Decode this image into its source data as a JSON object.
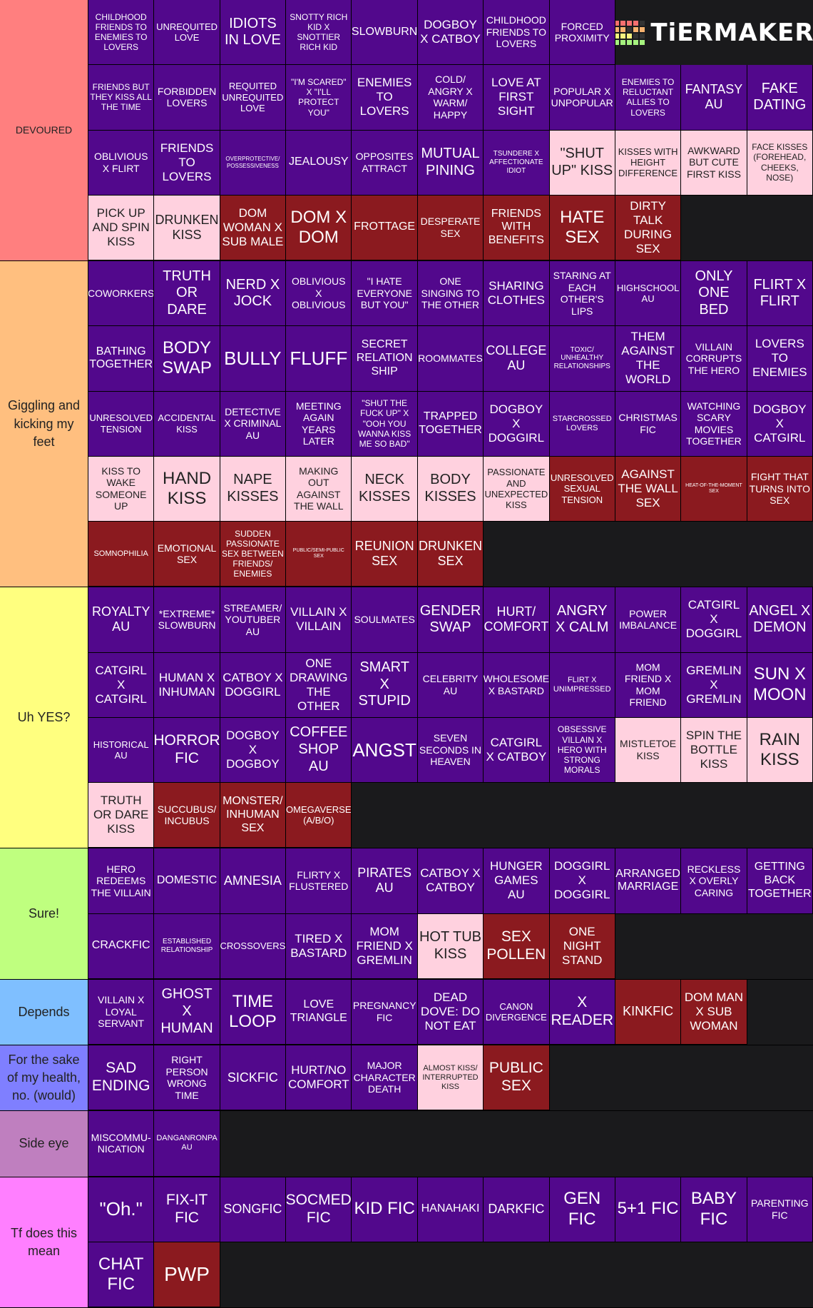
{
  "logo": {
    "text": "TiERMAKER"
  },
  "tiers": [
    {
      "label": "DEVOURED",
      "color": "#ff7f7f",
      "items": [
        {
          "text": "CHILDHOOD FRIENDS TO ENEMIES TO LOVERS",
          "color": "#52088c"
        },
        {
          "text": "UNREQUITED LOVE",
          "color": "#52088c"
        },
        {
          "text": "IDIOTS IN LOVE",
          "color": "#52088c"
        },
        {
          "text": "SNOTTY RICH KID X SNOTTIER RICH KID",
          "color": "#52088c"
        },
        {
          "text": "SLOWBURN",
          "color": "#52088c"
        },
        {
          "text": "DOGBOY X CATBOY",
          "color": "#52088c"
        },
        {
          "text": "CHILDHOOD FRIENDS TO LOVERS",
          "color": "#52088c"
        },
        {
          "text": "FORCED PROXIMITY",
          "color": "#52088c"
        },
        {
          "text": "FRIENDS BUT THEY KISS ALL THE TIME",
          "color": "#52088c"
        },
        {
          "text": "FORBIDDEN LOVERS",
          "color": "#52088c"
        },
        {
          "text": "REQUITED UNREQUITED LOVE",
          "color": "#52088c"
        },
        {
          "text": "\"I'M SCARED\" X \"I'LL PROTECT YOU\"",
          "color": "#52088c"
        },
        {
          "text": "ENEMIES TO LOVERS",
          "color": "#52088c"
        },
        {
          "text": "COLD/ ANGRY X WARM/ HAPPY",
          "color": "#52088c"
        },
        {
          "text": "LOVE AT FIRST SIGHT",
          "color": "#52088c"
        },
        {
          "text": "POPULAR X UNPOPULAR",
          "color": "#52088c"
        },
        {
          "text": "ENEMIES TO RELUCTANT ALLIES TO LOVERS",
          "color": "#52088c"
        },
        {
          "text": "FANTASY AU",
          "color": "#52088c"
        },
        {
          "text": "FAKE DATING",
          "color": "#52088c"
        },
        {
          "text": "OBLIVIOUS X FLIRT",
          "color": "#52088c"
        },
        {
          "text": "FRIENDS TO LOVERS",
          "color": "#52088c"
        },
        {
          "text": "OVERPROTECTIVE/ POSSESSIVENESS",
          "color": "#52088c"
        },
        {
          "text": "JEALOUSY",
          "color": "#52088c"
        },
        {
          "text": "OPPOSITES ATTRACT",
          "color": "#52088c"
        },
        {
          "text": "MUTUAL PINING",
          "color": "#52088c"
        },
        {
          "text": "TSUNDERE X AFFECTIONATE IDIOT",
          "color": "#52088c"
        },
        {
          "text": "\"SHUT UP\" KISS",
          "color": "#ffd1df"
        },
        {
          "text": "KISSES WITH HEIGHT DIFFERENCE",
          "color": "#ffd1df"
        },
        {
          "text": "AWKWARD BUT CUTE FIRST KISS",
          "color": "#ffd1df"
        },
        {
          "text": "FACE KISSES (FOREHEAD, CHEEKS, NOSE)",
          "color": "#ffd1df"
        },
        {
          "text": "PICK UP AND SPIN KISS",
          "color": "#ffd1df"
        },
        {
          "text": "DRUNKEN KISS",
          "color": "#ffd1df"
        },
        {
          "text": "DOM WOMAN X SUB MALE",
          "color": "#8b1a1f"
        },
        {
          "text": "DOM X DOM",
          "color": "#8b1a1f"
        },
        {
          "text": "FROTTAGE",
          "color": "#8b1a1f"
        },
        {
          "text": "DESPERATE SEX",
          "color": "#8b1a1f"
        },
        {
          "text": "FRIENDS WITH BENEFITS",
          "color": "#8b1a1f"
        },
        {
          "text": "HATE SEX",
          "color": "#8b1a1f"
        },
        {
          "text": "DIRTY TALK DURING SEX",
          "color": "#8b1a1f"
        }
      ]
    },
    {
      "label": "Giggling and kicking my feet",
      "color": "#ffbf7f",
      "items": [
        {
          "text": "COWORKERS",
          "color": "#52088c"
        },
        {
          "text": "TRUTH OR DARE",
          "color": "#52088c"
        },
        {
          "text": "NERD X JOCK",
          "color": "#52088c"
        },
        {
          "text": "OBLIVIOUS X OBLIVIOUS",
          "color": "#52088c"
        },
        {
          "text": "\"I HATE EVERYONE BUT YOU\"",
          "color": "#52088c"
        },
        {
          "text": "ONE SINGING TO THE OTHER",
          "color": "#52088c"
        },
        {
          "text": "SHARING CLOTHES",
          "color": "#52088c"
        },
        {
          "text": "STARING AT EACH OTHER'S LIPS",
          "color": "#52088c"
        },
        {
          "text": "HIGHSCHOOL AU",
          "color": "#52088c"
        },
        {
          "text": "ONLY ONE BED",
          "color": "#52088c"
        },
        {
          "text": "FLIRT X FLIRT",
          "color": "#52088c"
        },
        {
          "text": "BATHING TOGETHER",
          "color": "#52088c"
        },
        {
          "text": "BODY SWAP",
          "color": "#52088c"
        },
        {
          "text": "BULLY",
          "color": "#52088c"
        },
        {
          "text": "FLUFF",
          "color": "#52088c"
        },
        {
          "text": "SECRET RELATION SHIP",
          "color": "#52088c"
        },
        {
          "text": "ROOMMATES",
          "color": "#52088c"
        },
        {
          "text": "COLLEGE AU",
          "color": "#52088c"
        },
        {
          "text": "TOXIC/ UNHEALTHY RELATIONSHIPS",
          "color": "#52088c"
        },
        {
          "text": "THEM AGAINST THE WORLD",
          "color": "#52088c"
        },
        {
          "text": "VILLAIN CORRUPTS THE HERO",
          "color": "#52088c"
        },
        {
          "text": "LOVERS TO ENEMIES",
          "color": "#52088c"
        },
        {
          "text": "UNRESOLVED TENSION",
          "color": "#52088c"
        },
        {
          "text": "ACCIDENTAL KISS",
          "color": "#52088c"
        },
        {
          "text": "DETECTIVE X CRIMINAL AU",
          "color": "#52088c"
        },
        {
          "text": "MEETING AGAIN YEARS LATER",
          "color": "#52088c"
        },
        {
          "text": "\"SHUT THE FUCK UP\" X \"OOH YOU WANNA KISS ME SO BAD\"",
          "color": "#52088c"
        },
        {
          "text": "TRAPPED TOGETHER",
          "color": "#52088c"
        },
        {
          "text": "DOGBOY X DOGGIRL",
          "color": "#52088c"
        },
        {
          "text": "STARCROSSED LOVERS",
          "color": "#52088c"
        },
        {
          "text": "CHRISTMAS FIC",
          "color": "#52088c"
        },
        {
          "text": "WATCHING SCARY MOVIES TOGETHER",
          "color": "#52088c"
        },
        {
          "text": "DOGBOY X CATGIRL",
          "color": "#52088c"
        },
        {
          "text": "KISS TO WAKE SOMEONE UP",
          "color": "#ffd1df"
        },
        {
          "text": "HAND KISS",
          "color": "#ffd1df"
        },
        {
          "text": "NAPE KISSES",
          "color": "#ffd1df"
        },
        {
          "text": "MAKING OUT AGAINST THE WALL",
          "color": "#ffd1df"
        },
        {
          "text": "NECK KISSES",
          "color": "#ffd1df"
        },
        {
          "text": "BODY KISSES",
          "color": "#ffd1df"
        },
        {
          "text": "PASSIONATE AND UNEXPECTED KISS",
          "color": "#ffd1df"
        },
        {
          "text": "UNRESOLVED SEXUAL TENSION",
          "color": "#8b1a1f"
        },
        {
          "text": "AGAINST THE WALL SEX",
          "color": "#8b1a1f"
        },
        {
          "text": "HEAT-OF-THE-MOMENT SEX",
          "color": "#8b1a1f"
        },
        {
          "text": "FIGHT THAT TURNS INTO SEX",
          "color": "#8b1a1f"
        },
        {
          "text": "SOMNOPHILIA",
          "color": "#8b1a1f"
        },
        {
          "text": "EMOTIONAL SEX",
          "color": "#8b1a1f"
        },
        {
          "text": "SUDDEN PASSIONATE SEX BETWEEN FRIENDS/ ENEMIES",
          "color": "#8b1a1f"
        },
        {
          "text": "PUBLIC/SEMI-PUBLIC SEX",
          "color": "#8b1a1f"
        },
        {
          "text": "REUNION SEX",
          "color": "#8b1a1f"
        },
        {
          "text": "DRUNKEN SEX",
          "color": "#8b1a1f"
        }
      ]
    },
    {
      "label": "Uh YES?",
      "color": "#ffff7f",
      "items": [
        {
          "text": "ROYALTY AU",
          "color": "#52088c"
        },
        {
          "text": "*EXTREME* SLOWBURN",
          "color": "#52088c"
        },
        {
          "text": "STREAMER/ YOUTUBER AU",
          "color": "#52088c"
        },
        {
          "text": "VILLAIN X VILLAIN",
          "color": "#52088c"
        },
        {
          "text": "SOULMATES",
          "color": "#52088c"
        },
        {
          "text": "GENDER SWAP",
          "color": "#52088c"
        },
        {
          "text": "HURT/ COMFORT",
          "color": "#52088c"
        },
        {
          "text": "ANGRY X CALM",
          "color": "#52088c"
        },
        {
          "text": "POWER IMBALANCE",
          "color": "#52088c"
        },
        {
          "text": "CATGIRL X DOGGIRL",
          "color": "#52088c"
        },
        {
          "text": "ANGEL X DEMON",
          "color": "#52088c"
        },
        {
          "text": "CATGIRL X CATGIRL",
          "color": "#52088c"
        },
        {
          "text": "HUMAN X INHUMAN",
          "color": "#52088c"
        },
        {
          "text": "CATBOY X DOGGIRL",
          "color": "#52088c"
        },
        {
          "text": "ONE DRAWING THE OTHER",
          "color": "#52088c"
        },
        {
          "text": "SMART X STUPID",
          "color": "#52088c"
        },
        {
          "text": "CELEBRITY AU",
          "color": "#52088c"
        },
        {
          "text": "WHOLESOME X BASTARD",
          "color": "#52088c"
        },
        {
          "text": "FLIRT X UNIMPRESSED",
          "color": "#52088c"
        },
        {
          "text": "MOM FRIEND X MOM FRIEND",
          "color": "#52088c"
        },
        {
          "text": "GREMLIN X GREMLIN",
          "color": "#52088c"
        },
        {
          "text": "SUN X MOON",
          "color": "#52088c"
        },
        {
          "text": "HISTORICAL AU",
          "color": "#52088c"
        },
        {
          "text": "HORROR FIC",
          "color": "#52088c"
        },
        {
          "text": "DOGBOY X DOGBOY",
          "color": "#52088c"
        },
        {
          "text": "COFFEE SHOP AU",
          "color": "#52088c"
        },
        {
          "text": "ANGST",
          "color": "#52088c"
        },
        {
          "text": "SEVEN SECONDS IN HEAVEN",
          "color": "#52088c"
        },
        {
          "text": "CATGIRL X CATBOY",
          "color": "#52088c"
        },
        {
          "text": "OBSESSIVE VILLAIN X HERO WITH STRONG MORALS",
          "color": "#52088c"
        },
        {
          "text": "MISTLETOE KISS",
          "color": "#ffd1df"
        },
        {
          "text": "SPIN THE BOTTLE KISS",
          "color": "#ffd1df"
        },
        {
          "text": "RAIN KISS",
          "color": "#ffd1df"
        },
        {
          "text": "TRUTH OR DARE KISS",
          "color": "#ffd1df"
        },
        {
          "text": "SUCCUBUS/ INCUBUS",
          "color": "#8b1a1f"
        },
        {
          "text": "MONSTER/ INHUMAN SEX",
          "color": "#8b1a1f"
        },
        {
          "text": "OMEGAVERSE (A/B/O)",
          "color": "#8b1a1f"
        }
      ]
    },
    {
      "label": "Sure!",
      "color": "#bfff7f",
      "items": [
        {
          "text": "HERO REDEEMS THE VILLAIN",
          "color": "#52088c"
        },
        {
          "text": "DOMESTIC",
          "color": "#52088c"
        },
        {
          "text": "AMNESIA",
          "color": "#52088c"
        },
        {
          "text": "FLIRTY X FLUSTERED",
          "color": "#52088c"
        },
        {
          "text": "PIRATES AU",
          "color": "#52088c"
        },
        {
          "text": "CATBOY X CATBOY",
          "color": "#52088c"
        },
        {
          "text": "HUNGER GAMES AU",
          "color": "#52088c"
        },
        {
          "text": "DOGGIRL X DOGGIRL",
          "color": "#52088c"
        },
        {
          "text": "ARRANGED MARRIAGE",
          "color": "#52088c"
        },
        {
          "text": "RECKLESS X OVERLY CARING",
          "color": "#52088c"
        },
        {
          "text": "GETTING BACK TOGETHER",
          "color": "#52088c"
        },
        {
          "text": "CRACKFIC",
          "color": "#52088c"
        },
        {
          "text": "ESTABLISHED RELATIONSHIP",
          "color": "#52088c"
        },
        {
          "text": "CROSSOVERS",
          "color": "#52088c"
        },
        {
          "text": "TIRED X BASTARD",
          "color": "#52088c"
        },
        {
          "text": "MOM FRIEND X GREMLIN",
          "color": "#52088c"
        },
        {
          "text": "HOT TUB KISS",
          "color": "#ffd1df"
        },
        {
          "text": "SEX POLLEN",
          "color": "#8b1a1f"
        },
        {
          "text": "ONE NIGHT STAND",
          "color": "#8b1a1f"
        }
      ]
    },
    {
      "label": "Depends",
      "color": "#7fbfff",
      "items": [
        {
          "text": "VILLAIN X LOYAL SERVANT",
          "color": "#52088c"
        },
        {
          "text": "GHOST X HUMAN",
          "color": "#52088c"
        },
        {
          "text": "TIME LOOP",
          "color": "#52088c"
        },
        {
          "text": "LOVE TRIANGLE",
          "color": "#52088c"
        },
        {
          "text": "PREGNANCY FIC",
          "color": "#52088c"
        },
        {
          "text": "DEAD DOVE: DO NOT EAT",
          "color": "#52088c"
        },
        {
          "text": "CANON DIVERGENCE",
          "color": "#52088c"
        },
        {
          "text": "X READER",
          "color": "#52088c"
        },
        {
          "text": "KINKFIC",
          "color": "#8b1a1f"
        },
        {
          "text": "DOM MAN X SUB WOMAN",
          "color": "#8b1a1f"
        }
      ]
    },
    {
      "label": "For the sake of my health, no. (would)",
      "color": "#7f7fff",
      "items": [
        {
          "text": "SAD ENDING",
          "color": "#52088c"
        },
        {
          "text": "RIGHT PERSON WRONG TIME",
          "color": "#52088c"
        },
        {
          "text": "SICKFIC",
          "color": "#52088c"
        },
        {
          "text": "HURT/NO COMFORT",
          "color": "#52088c"
        },
        {
          "text": "MAJOR CHARACTER DEATH",
          "color": "#52088c"
        },
        {
          "text": "ALMOST KISS/ INTERRUPTED KISS",
          "color": "#ffd1df"
        },
        {
          "text": "PUBLIC SEX",
          "color": "#8b1a1f"
        }
      ]
    },
    {
      "label": "Side eye",
      "color": "#bf7fbf",
      "items": [
        {
          "text": "MISCOMMU- NICATION",
          "color": "#52088c"
        },
        {
          "text": "DANGANRONPA AU",
          "color": "#52088c"
        }
      ]
    },
    {
      "label": "Tf does this mean",
      "color": "#ff7fff",
      "items": [
        {
          "text": "\"Oh.\"",
          "color": "#52088c"
        },
        {
          "text": "FIX-IT FIC",
          "color": "#52088c"
        },
        {
          "text": "SONGFIC",
          "color": "#52088c"
        },
        {
          "text": "SOCMED FIC",
          "color": "#52088c"
        },
        {
          "text": "KID FIC",
          "color": "#52088c"
        },
        {
          "text": "HANAHAKI",
          "color": "#52088c"
        },
        {
          "text": "DARKFIC",
          "color": "#52088c"
        },
        {
          "text": "GEN FIC",
          "color": "#52088c"
        },
        {
          "text": "5+1 FIC",
          "color": "#52088c"
        },
        {
          "text": "BABY FIC",
          "color": "#52088c"
        },
        {
          "text": "PARENTING FIC",
          "color": "#52088c"
        },
        {
          "text": "CHAT FIC",
          "color": "#52088c"
        },
        {
          "text": "PWP",
          "color": "#8b1a1f"
        }
      ]
    }
  ]
}
